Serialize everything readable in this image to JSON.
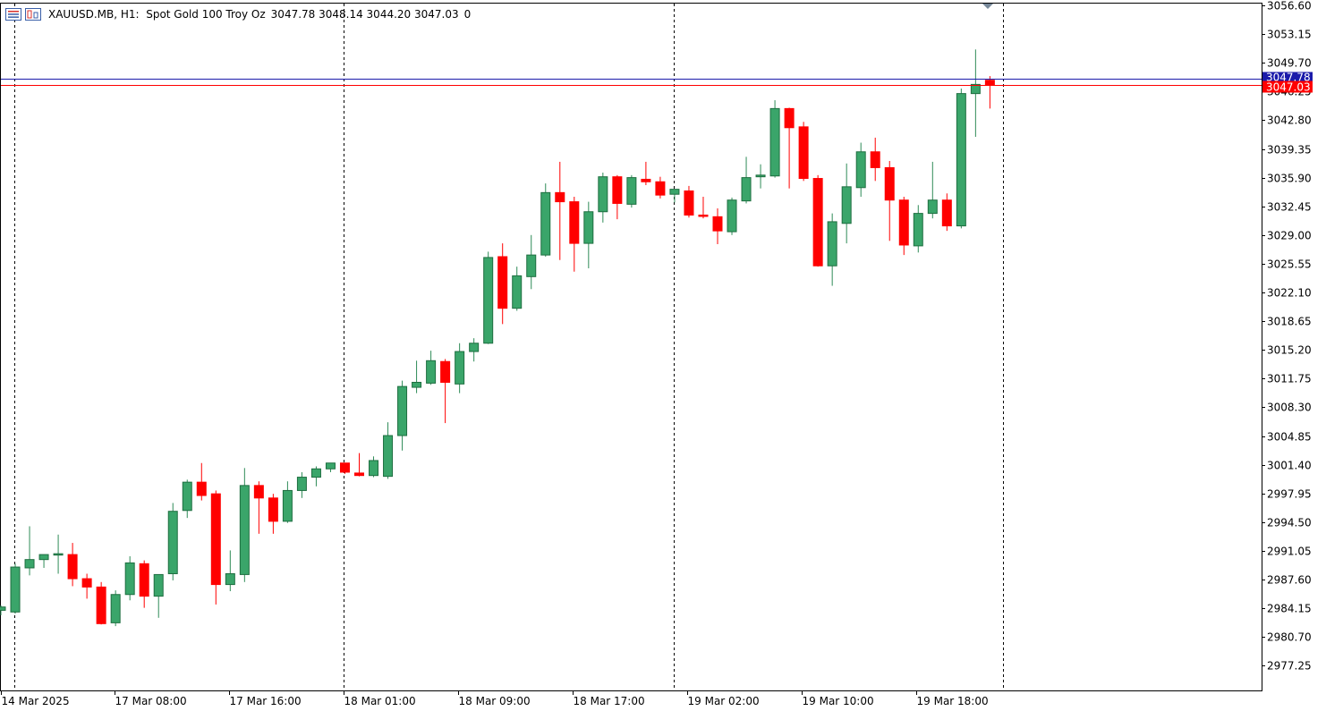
{
  "header": {
    "symbol": "XAUUSD.MB, H1:  Spot Gold 100 Troy Oz",
    "ohlc": "3047.78 3048.14 3044.20 3047.03",
    "volume": "0"
  },
  "colors": {
    "bull": "#3aa56a",
    "bear": "#ff0000",
    "bid_line": "#ff0000",
    "ask_line": "#1b1baa",
    "grid_sep": "#000000",
    "axis": "#000000"
  },
  "price_labels": {
    "current": "3047.03",
    "ask": "3047.78"
  },
  "chart_data": {
    "type": "candlestick",
    "title": "XAUUSD.MB, H1:  Spot Gold 100 Troy Oz",
    "y_ticks": [
      "3056.60",
      "3053.15",
      "3049.70",
      "3046.25",
      "3042.80",
      "3039.35",
      "3035.90",
      "3032.45",
      "3029.00",
      "3025.55",
      "3022.10",
      "3018.65",
      "3015.20",
      "3011.75",
      "3008.30",
      "3004.85",
      "3001.40",
      "2997.95",
      "2994.50",
      "2991.05",
      "2987.60",
      "2984.15",
      "2980.70",
      "2977.25"
    ],
    "x_labels": [
      "14 Mar 2025",
      "17 Mar 08:00",
      "17 Mar 16:00",
      "18 Mar 01:00",
      "18 Mar 09:00",
      "18 Mar 17:00",
      "19 Mar 02:00",
      "19 Mar 10:00",
      "19 Mar 18:00"
    ],
    "ylim": [
      2973.95,
      3057.0
    ],
    "current_price": 3047.03,
    "ask_price": 3047.78,
    "day_separators_after_candle": [
      1,
      24,
      47,
      70
    ],
    "candles": [
      {
        "o": 2983.9,
        "h": 2984.5,
        "l": 2983.3,
        "c": 2984.3
      },
      {
        "o": 2983.7,
        "h": 2989.5,
        "l": 2983.5,
        "c": 2989.1
      },
      {
        "o": 2989.0,
        "h": 2994.0,
        "l": 2988.1,
        "c": 2990.0
      },
      {
        "o": 2990.0,
        "h": 2990.6,
        "l": 2989.0,
        "c": 2990.6
      },
      {
        "o": 2990.7,
        "h": 2993.0,
        "l": 2988.3,
        "c": 2990.7
      },
      {
        "o": 2990.6,
        "h": 2992.0,
        "l": 2986.8,
        "c": 2987.7
      },
      {
        "o": 2987.7,
        "h": 2988.3,
        "l": 2985.3,
        "c": 2986.7
      },
      {
        "o": 2986.7,
        "h": 2987.3,
        "l": 2982.2,
        "c": 2982.3
      },
      {
        "o": 2982.4,
        "h": 2986.3,
        "l": 2982.0,
        "c": 2985.8
      },
      {
        "o": 2985.8,
        "h": 2990.4,
        "l": 2985.1,
        "c": 2989.6
      },
      {
        "o": 2989.5,
        "h": 2989.9,
        "l": 2984.2,
        "c": 2985.6
      },
      {
        "o": 2985.6,
        "h": 2988.2,
        "l": 2983.0,
        "c": 2988.2
      },
      {
        "o": 2988.3,
        "h": 2996.8,
        "l": 2987.5,
        "c": 2995.8
      },
      {
        "o": 2995.9,
        "h": 2999.6,
        "l": 2995.0,
        "c": 2999.3
      },
      {
        "o": 2999.3,
        "h": 3001.6,
        "l": 2997.1,
        "c": 2997.7
      },
      {
        "o": 2997.9,
        "h": 2998.3,
        "l": 2984.6,
        "c": 2987.0
      },
      {
        "o": 2987.0,
        "h": 2991.1,
        "l": 2986.2,
        "c": 2988.3
      },
      {
        "o": 2988.2,
        "h": 3001.0,
        "l": 2987.3,
        "c": 2998.9
      },
      {
        "o": 2998.9,
        "h": 2999.4,
        "l": 2993.1,
        "c": 2997.4
      },
      {
        "o": 2997.4,
        "h": 2997.9,
        "l": 2993.1,
        "c": 2994.6
      },
      {
        "o": 2994.6,
        "h": 2999.4,
        "l": 2994.4,
        "c": 2998.3
      },
      {
        "o": 2998.3,
        "h": 3000.5,
        "l": 2997.4,
        "c": 2999.9
      },
      {
        "o": 2999.9,
        "h": 3001.2,
        "l": 2998.8,
        "c": 3000.9
      },
      {
        "o": 3000.9,
        "h": 3001.6,
        "l": 3000.5,
        "c": 3001.6
      },
      {
        "o": 3001.6,
        "h": 3001.6,
        "l": 3000.3,
        "c": 3000.5
      },
      {
        "o": 3000.4,
        "h": 3002.8,
        "l": 3000.0,
        "c": 3000.1
      },
      {
        "o": 3000.1,
        "h": 3002.4,
        "l": 2999.9,
        "c": 3001.9
      },
      {
        "o": 3000.0,
        "h": 3006.5,
        "l": 2999.7,
        "c": 3004.9
      },
      {
        "o": 3004.9,
        "h": 3011.5,
        "l": 3003.1,
        "c": 3010.8
      },
      {
        "o": 3010.7,
        "h": 3013.9,
        "l": 3010.0,
        "c": 3011.3
      },
      {
        "o": 3011.2,
        "h": 3015.1,
        "l": 3011.0,
        "c": 3013.9
      },
      {
        "o": 3013.8,
        "h": 3014.1,
        "l": 3006.4,
        "c": 3011.3
      },
      {
        "o": 3011.1,
        "h": 3016.0,
        "l": 3010.0,
        "c": 3015.0
      },
      {
        "o": 3015.0,
        "h": 3016.6,
        "l": 3013.8,
        "c": 3016.0
      },
      {
        "o": 3016.0,
        "h": 3027.0,
        "l": 3015.9,
        "c": 3026.3
      },
      {
        "o": 3026.4,
        "h": 3028.0,
        "l": 3018.3,
        "c": 3020.2
      },
      {
        "o": 3020.2,
        "h": 3025.2,
        "l": 3019.9,
        "c": 3024.1
      },
      {
        "o": 3024.0,
        "h": 3029.0,
        "l": 3022.5,
        "c": 3026.6
      },
      {
        "o": 3026.6,
        "h": 3035.2,
        "l": 3026.4,
        "c": 3034.1
      },
      {
        "o": 3034.1,
        "h": 3037.8,
        "l": 3026.0,
        "c": 3033.0
      },
      {
        "o": 3033.0,
        "h": 3033.6,
        "l": 3024.6,
        "c": 3028.0
      },
      {
        "o": 3028.0,
        "h": 3033.0,
        "l": 3025.0,
        "c": 3031.8
      },
      {
        "o": 3031.8,
        "h": 3036.5,
        "l": 3030.5,
        "c": 3036.0
      },
      {
        "o": 3036.0,
        "h": 3036.2,
        "l": 3030.9,
        "c": 3032.8
      },
      {
        "o": 3032.7,
        "h": 3036.2,
        "l": 3032.3,
        "c": 3035.9
      },
      {
        "o": 3035.7,
        "h": 3037.8,
        "l": 3035.0,
        "c": 3035.4
      },
      {
        "o": 3035.4,
        "h": 3036.0,
        "l": 3033.4,
        "c": 3033.8
      },
      {
        "o": 3033.9,
        "h": 3034.5,
        "l": 3032.9,
        "c": 3034.5
      },
      {
        "o": 3034.3,
        "h": 3034.9,
        "l": 3031.1,
        "c": 3031.4
      },
      {
        "o": 3031.4,
        "h": 3033.6,
        "l": 3031.0,
        "c": 3031.3
      },
      {
        "o": 3031.2,
        "h": 3032.2,
        "l": 3027.9,
        "c": 3029.5
      },
      {
        "o": 3029.4,
        "h": 3033.5,
        "l": 3029.0,
        "c": 3033.2
      },
      {
        "o": 3033.1,
        "h": 3038.4,
        "l": 3032.8,
        "c": 3035.9
      },
      {
        "o": 3036.0,
        "h": 3037.5,
        "l": 3034.6,
        "c": 3036.2
      },
      {
        "o": 3036.1,
        "h": 3045.2,
        "l": 3035.9,
        "c": 3044.2
      },
      {
        "o": 3044.2,
        "h": 3044.3,
        "l": 3034.6,
        "c": 3041.9
      },
      {
        "o": 3042.0,
        "h": 3042.6,
        "l": 3035.5,
        "c": 3035.8
      },
      {
        "o": 3035.8,
        "h": 3036.2,
        "l": 3025.2,
        "c": 3025.3
      },
      {
        "o": 3025.3,
        "h": 3031.6,
        "l": 3022.9,
        "c": 3030.6
      },
      {
        "o": 3030.4,
        "h": 3037.6,
        "l": 3028.0,
        "c": 3034.8
      },
      {
        "o": 3034.7,
        "h": 3040.1,
        "l": 3033.6,
        "c": 3039.0
      },
      {
        "o": 3039.0,
        "h": 3040.7,
        "l": 3035.5,
        "c": 3037.1
      },
      {
        "o": 3037.1,
        "h": 3037.9,
        "l": 3028.3,
        "c": 3033.2
      },
      {
        "o": 3033.2,
        "h": 3033.6,
        "l": 3026.6,
        "c": 3027.8
      },
      {
        "o": 3027.7,
        "h": 3032.6,
        "l": 3026.9,
        "c": 3031.6
      },
      {
        "o": 3031.6,
        "h": 3037.8,
        "l": 3031.0,
        "c": 3033.2
      },
      {
        "o": 3033.2,
        "h": 3034.0,
        "l": 3029.5,
        "c": 3030.1
      },
      {
        "o": 3030.1,
        "h": 3046.6,
        "l": 3029.8,
        "c": 3046.0
      },
      {
        "o": 3046.0,
        "h": 3051.3,
        "l": 3040.8,
        "c": 3047.1
      },
      {
        "o": 3047.6,
        "h": 3048.1,
        "l": 3044.2,
        "c": 3047.03
      }
    ]
  }
}
